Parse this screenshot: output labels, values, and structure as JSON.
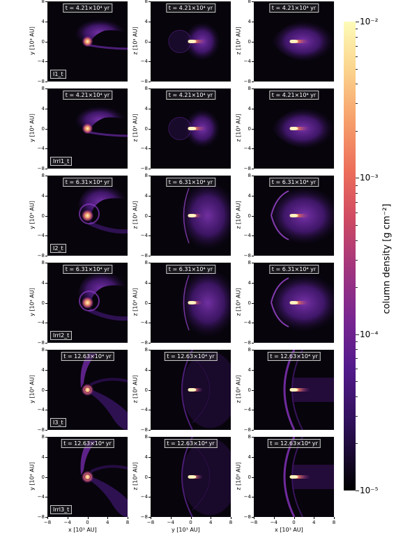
{
  "rows": [
    {
      "time": "t = 4.21×10⁴ yr",
      "name": "I1_t",
      "kind": "a"
    },
    {
      "time": "t = 4.21×10⁴ yr",
      "name": "Irrl1_t",
      "kind": "a"
    },
    {
      "time": "t = 6.31×10⁴ yr",
      "name": "I2_t",
      "kind": "b"
    },
    {
      "time": "t = 6.31×10⁴ yr",
      "name": "Irrl2_t",
      "kind": "b"
    },
    {
      "time": "t = 12.63×10⁴ yr",
      "name": "I3_t",
      "kind": "c"
    },
    {
      "time": "t = 12.63×10⁴ yr",
      "name": "Irrl3_t",
      "kind": "c"
    }
  ],
  "axes": {
    "col_ylabels": [
      "y [10³ AU]",
      "z [10³ AU]",
      "z [10³ AU]"
    ],
    "col_xlabels": [
      "x [10³ AU]",
      "y [10³ AU]",
      "x [10³ AU]"
    ],
    "yticks": [
      "8",
      "4",
      "0",
      "−4",
      "−8"
    ],
    "xticks": [
      "−8",
      "−4",
      "0",
      "4",
      "8"
    ]
  },
  "colorbar": {
    "label": "column density [g cm⁻²]",
    "ticks": [
      "10⁻²",
      "10⁻³",
      "10⁻⁴",
      "10⁻⁵"
    ],
    "colors": [
      "#fdfbb8",
      "#f7a46d",
      "#cf4a63",
      "#7a2691",
      "#2e1057",
      "#000000"
    ]
  }
}
